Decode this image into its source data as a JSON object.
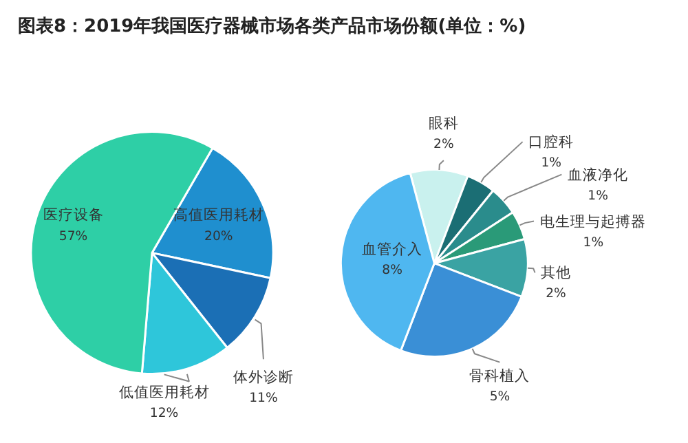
{
  "chart_data": [
    {
      "type": "pie",
      "title": "图表8：2019年我国医疗器械市场各类产品市场份额(单位：%)",
      "categories": [
        "高值医用耗材",
        "体外诊断",
        "低值医用耗材",
        "医疗设备"
      ],
      "values": [
        20,
        11,
        12,
        57
      ],
      "colors": [
        "#1f8fcf",
        "#1b6fb5",
        "#2ec6da",
        "#2ecfa6"
      ],
      "value_labels": [
        "20%",
        "11%",
        "12%",
        "57%"
      ]
    },
    {
      "type": "pie",
      "categories": [
        "眼科",
        "口腔科",
        "血液净化",
        "电生理与起搏器",
        "其他",
        "骨科植入",
        "血管介入"
      ],
      "values": [
        2,
        1,
        1,
        1,
        2,
        5,
        8
      ],
      "colors": [
        "#c9f1ee",
        "#1b6e74",
        "#2a8c8c",
        "#2a9a78",
        "#3aa3a3",
        "#3a8fd6",
        "#4fb7f0"
      ],
      "value_labels": [
        "2%",
        "1%",
        "1%",
        "1%",
        "2%",
        "5%",
        "8%"
      ]
    }
  ]
}
